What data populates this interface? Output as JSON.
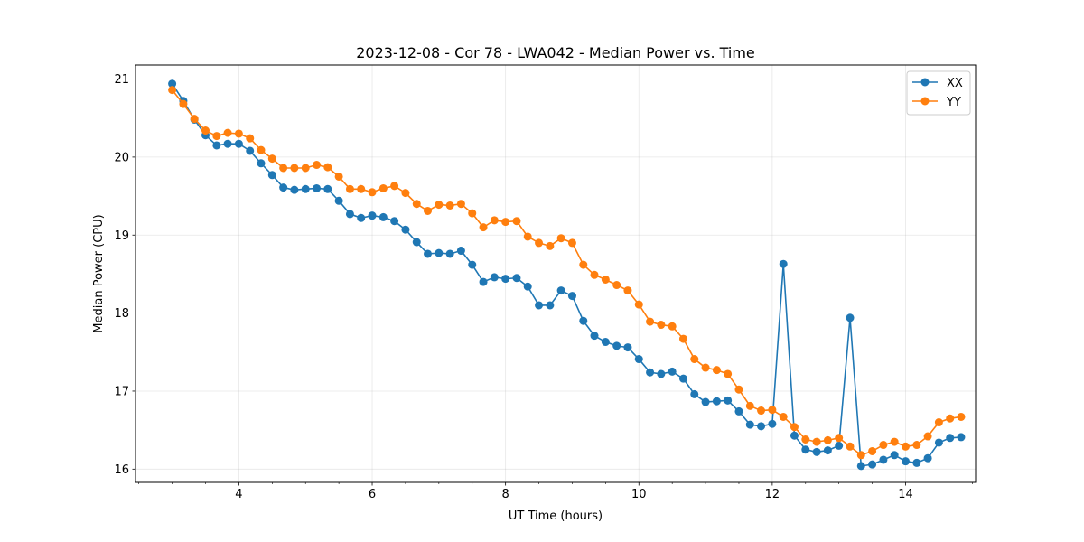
{
  "chart_data": {
    "type": "line",
    "title": "2023-12-08 - Cor 78 - LWA042 - Median Power vs. Time",
    "xlabel": "UT Time (hours)",
    "ylabel": "Median Power (CPU)",
    "xlim": [
      2.45,
      15.05
    ],
    "ylim": [
      15.83,
      21.18
    ],
    "xticks": [
      4,
      6,
      8,
      10,
      12,
      14
    ],
    "yticks": [
      16,
      17,
      18,
      19,
      20,
      21
    ],
    "xtick_labels": [
      "4",
      "6",
      "8",
      "10",
      "12",
      "14"
    ],
    "ytick_labels": [
      "16",
      "17",
      "18",
      "19",
      "20",
      "21"
    ],
    "grid": true,
    "legend_position": "top-right",
    "x": [
      3.0,
      3.167,
      3.333,
      3.5,
      3.667,
      3.833,
      4.0,
      4.167,
      4.333,
      4.5,
      4.667,
      4.833,
      5.0,
      5.167,
      5.333,
      5.5,
      5.667,
      5.833,
      6.0,
      6.167,
      6.333,
      6.5,
      6.667,
      6.833,
      7.0,
      7.167,
      7.333,
      7.5,
      7.667,
      7.833,
      8.0,
      8.167,
      8.333,
      8.5,
      8.667,
      8.833,
      9.0,
      9.167,
      9.333,
      9.5,
      9.667,
      9.833,
      10.0,
      10.167,
      10.333,
      10.5,
      10.667,
      10.833,
      11.0,
      11.167,
      11.333,
      11.5,
      11.667,
      11.833,
      12.0,
      12.167,
      12.333,
      12.5,
      12.667,
      12.833,
      13.0,
      13.167,
      13.333,
      13.5,
      13.667,
      13.833,
      14.0,
      14.167,
      14.333,
      14.5,
      14.667,
      14.833
    ],
    "series": [
      {
        "name": "XX",
        "color": "#1f77b4",
        "values": [
          20.94,
          20.72,
          20.48,
          20.28,
          20.15,
          20.17,
          20.17,
          20.08,
          19.92,
          19.77,
          19.61,
          19.58,
          19.59,
          19.6,
          19.59,
          19.44,
          19.27,
          19.22,
          19.25,
          19.23,
          19.18,
          19.07,
          18.91,
          18.76,
          18.77,
          18.76,
          18.8,
          18.62,
          18.4,
          18.46,
          18.44,
          18.45,
          18.34,
          18.1,
          18.1,
          18.29,
          18.22,
          17.9,
          17.71,
          17.63,
          17.58,
          17.56,
          17.41,
          17.24,
          17.22,
          17.25,
          17.16,
          16.96,
          16.86,
          16.87,
          16.88,
          16.74,
          16.57,
          16.55,
          16.58,
          18.63,
          16.43,
          16.25,
          16.22,
          16.24,
          16.3,
          17.94,
          16.04,
          16.06,
          16.12,
          16.18,
          16.1,
          16.08,
          16.14,
          16.34,
          16.4,
          16.41
        ]
      },
      {
        "name": "YY",
        "color": "#ff7f0e",
        "values": [
          20.86,
          20.68,
          20.49,
          20.34,
          20.27,
          20.31,
          20.3,
          20.24,
          20.09,
          19.98,
          19.86,
          19.86,
          19.86,
          19.9,
          19.87,
          19.75,
          19.59,
          19.59,
          19.55,
          19.6,
          19.63,
          19.54,
          19.4,
          19.31,
          19.39,
          19.38,
          19.4,
          19.28,
          19.1,
          19.19,
          19.17,
          19.18,
          18.98,
          18.9,
          18.86,
          18.96,
          18.9,
          18.62,
          18.49,
          18.43,
          18.36,
          18.29,
          18.11,
          17.89,
          17.85,
          17.83,
          17.67,
          17.41,
          17.3,
          17.27,
          17.22,
          17.02,
          16.81,
          16.75,
          16.76,
          16.67,
          16.54,
          16.38,
          16.35,
          16.37,
          16.4,
          16.29,
          16.18,
          16.23,
          16.31,
          16.35,
          16.29,
          16.31,
          16.42,
          16.6,
          16.65,
          16.67
        ]
      }
    ]
  }
}
